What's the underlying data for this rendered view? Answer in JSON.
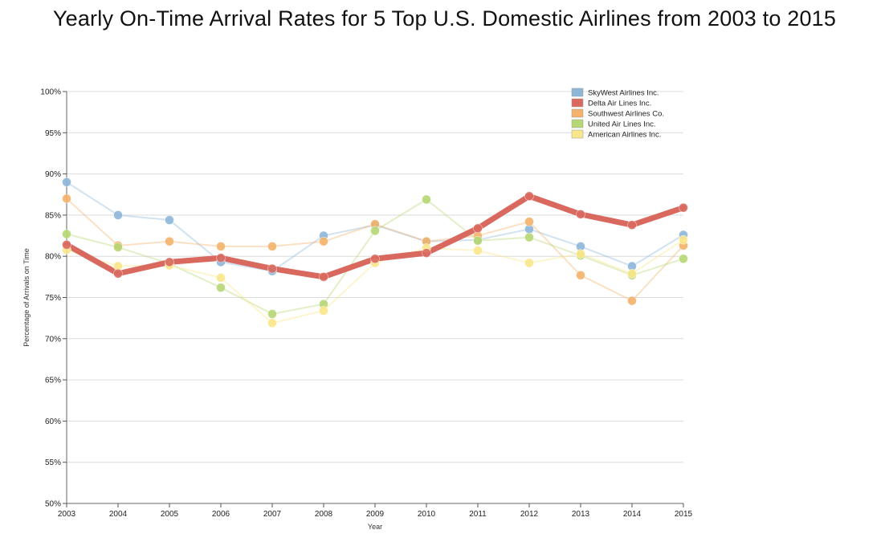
{
  "chart_data": {
    "type": "line",
    "title": "Yearly On-Time Arrival Rates for 5 Top U.S. Domestic Airlines from 2003 to 2015",
    "xlabel": "Year",
    "ylabel": "Percentage of Arrivals on Time",
    "x": [
      "2003",
      "2004",
      "2005",
      "2006",
      "2007",
      "2008",
      "2009",
      "2010",
      "2011",
      "2012",
      "2013",
      "2014",
      "2015"
    ],
    "ylim": [
      50,
      100
    ],
    "yticks": [
      "50%",
      "55%",
      "60%",
      "65%",
      "70%",
      "75%",
      "80%",
      "85%",
      "90%",
      "95%",
      "100%"
    ],
    "grid": "horizontal",
    "legend_position": "top-right",
    "highlighted_series": "Delta Air Lines Inc.",
    "series": [
      {
        "name": "SkyWest Airlines Inc.",
        "color": "#8db6d9",
        "values": [
          89.0,
          85.0,
          84.4,
          79.3,
          78.2,
          82.5,
          83.8,
          81.8,
          82.0,
          83.3,
          81.2,
          78.8,
          82.6
        ]
      },
      {
        "name": "Delta Air Lines Inc.",
        "color": "#d9695f",
        "values": [
          81.4,
          77.9,
          79.3,
          79.8,
          78.5,
          77.5,
          79.7,
          80.4,
          83.4,
          87.3,
          85.1,
          83.8,
          85.9
        ]
      },
      {
        "name": "Southwest Airlines Co.",
        "color": "#f4b26c",
        "values": [
          87.0,
          81.3,
          81.8,
          81.2,
          81.2,
          81.8,
          83.9,
          81.8,
          82.5,
          84.2,
          77.7,
          74.6,
          81.3
        ]
      },
      {
        "name": "United Air Lines Inc.",
        "color": "#b6d774",
        "values": [
          82.7,
          81.1,
          79.1,
          76.2,
          73.0,
          74.2,
          83.1,
          86.9,
          81.9,
          82.3,
          80.1,
          77.7,
          79.7
        ]
      },
      {
        "name": "American Airlines Inc.",
        "color": "#f9e68a",
        "values": [
          80.8,
          78.8,
          78.9,
          77.4,
          71.9,
          73.4,
          79.2,
          81.0,
          80.7,
          79.2,
          80.3,
          77.9,
          82.0
        ]
      }
    ]
  }
}
